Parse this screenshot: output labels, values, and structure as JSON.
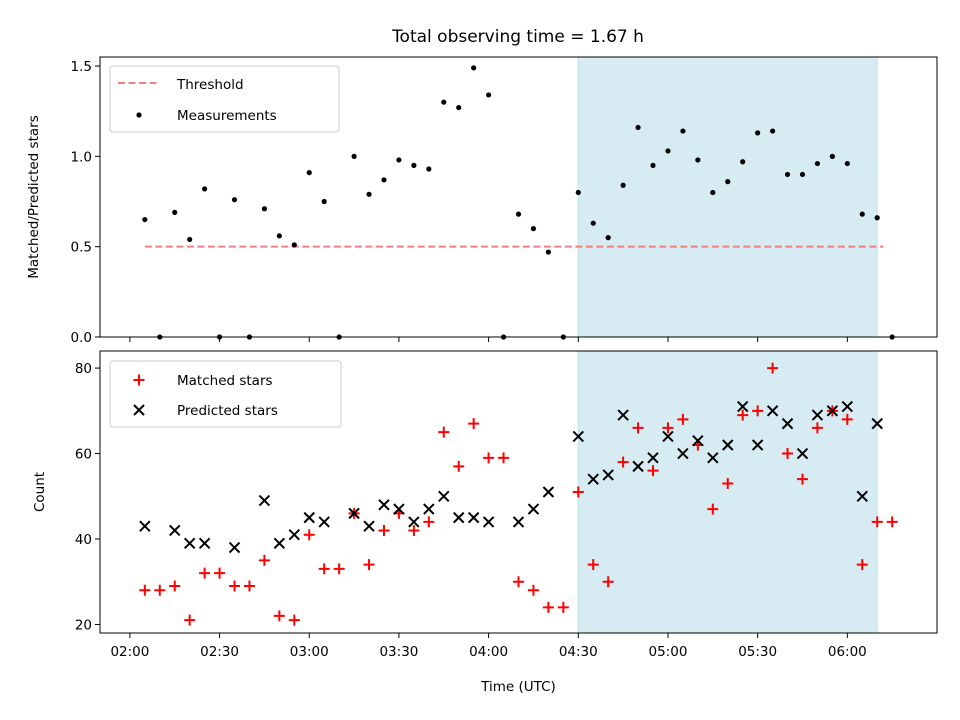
{
  "title": "Total observing time = 1.67 h",
  "colors": {
    "shade": "#add8e6",
    "threshold": "#f08080",
    "matched": "#ff0000",
    "predicted": "#000000",
    "measurement": "#000000"
  },
  "chart_data": [
    {
      "type": "scatter",
      "panel": "top",
      "ylabel": "Matched/Predicted stars",
      "ylim": [
        0,
        1.55
      ],
      "yticks": [
        0.0,
        0.5,
        1.0,
        1.5
      ],
      "ytick_labels": [
        "0.0",
        "0.5",
        "1.0",
        "1.5"
      ],
      "legend_position": "upper-left",
      "legend": [
        {
          "key": "threshold",
          "label": "Threshold"
        },
        {
          "key": "measurements",
          "label": "Measurements"
        }
      ],
      "threshold": {
        "value": 0.5,
        "x_start": "02:05",
        "x_end": "06:12"
      },
      "shaded_span": {
        "x_start": "04:30",
        "x_end": "06:10"
      },
      "series": [
        {
          "name": "Measurements",
          "x": [
            "02:05",
            "02:10",
            "02:15",
            "02:20",
            "02:25",
            "02:30",
            "02:35",
            "02:40",
            "02:45",
            "02:50",
            "02:55",
            "03:00",
            "03:05",
            "03:10",
            "03:15",
            "03:20",
            "03:25",
            "03:30",
            "03:35",
            "03:40",
            "03:45",
            "03:50",
            "03:55",
            "04:00",
            "04:05",
            "04:10",
            "04:15",
            "04:20",
            "04:25",
            "04:30",
            "04:35",
            "04:40",
            "04:45",
            "04:50",
            "04:55",
            "05:00",
            "05:05",
            "05:10",
            "05:15",
            "05:20",
            "05:25",
            "05:30",
            "05:35",
            "05:40",
            "05:45",
            "05:50",
            "05:55",
            "06:00",
            "06:05",
            "06:10",
            "06:15"
          ],
          "y": [
            0.65,
            0.0,
            0.69,
            0.54,
            0.82,
            0.0,
            0.76,
            0.0,
            0.71,
            0.56,
            0.51,
            0.91,
            0.75,
            0.0,
            1.0,
            0.79,
            0.87,
            0.98,
            0.95,
            0.93,
            1.3,
            1.27,
            1.49,
            1.34,
            0.0,
            0.68,
            0.6,
            0.47,
            0.0,
            0.8,
            0.63,
            0.55,
            0.84,
            1.16,
            0.95,
            1.03,
            1.14,
            0.98,
            0.8,
            0.86,
            0.97,
            1.13,
            1.14,
            0.9,
            0.9,
            0.96,
            1.0,
            0.96,
            0.68,
            0.66,
            0.0
          ]
        }
      ]
    },
    {
      "type": "scatter",
      "panel": "bottom",
      "xlabel": "Time (UTC)",
      "ylabel": "Count",
      "ylim": [
        18,
        84
      ],
      "xlim": [
        "01:50",
        "06:30"
      ],
      "xticks": [
        "02:00",
        "02:30",
        "03:00",
        "03:30",
        "04:00",
        "04:30",
        "05:00",
        "05:30",
        "06:00"
      ],
      "yticks": [
        20,
        40,
        60,
        80
      ],
      "ytick_labels": [
        "20",
        "40",
        "60",
        "80"
      ],
      "legend_position": "upper-left",
      "legend": [
        {
          "key": "matched",
          "label": "Matched stars"
        },
        {
          "key": "predicted",
          "label": "Predicted stars"
        }
      ],
      "shaded_span": {
        "x_start": "04:30",
        "x_end": "06:10"
      },
      "series": [
        {
          "name": "Matched stars",
          "x": [
            "02:05",
            "02:10",
            "02:15",
            "02:20",
            "02:25",
            "02:30",
            "02:35",
            "02:40",
            "02:45",
            "02:50",
            "02:55",
            "03:00",
            "03:05",
            "03:10",
            "03:15",
            "03:20",
            "03:25",
            "03:30",
            "03:35",
            "03:40",
            "03:45",
            "03:50",
            "03:55",
            "04:00",
            "04:05",
            "04:10",
            "04:15",
            "04:20",
            "04:25",
            "04:30",
            "04:35",
            "04:40",
            "04:45",
            "04:50",
            "04:55",
            "05:00",
            "05:05",
            "05:10",
            "05:15",
            "05:20",
            "05:25",
            "05:30",
            "05:35",
            "05:40",
            "05:45",
            "05:50",
            "05:55",
            "06:00",
            "06:05",
            "06:10",
            "06:15"
          ],
          "y": [
            28,
            28,
            29,
            21,
            32,
            32,
            29,
            29,
            35,
            22,
            21,
            41,
            33,
            33,
            46,
            34,
            42,
            46,
            42,
            44,
            65,
            57,
            67,
            59,
            59,
            30,
            28,
            24,
            24,
            51,
            34,
            30,
            58,
            66,
            56,
            66,
            68,
            62,
            47,
            53,
            69,
            70,
            80,
            60,
            54,
            66,
            70,
            68,
            34,
            44,
            44
          ]
        },
        {
          "name": "Predicted stars",
          "x": [
            "02:05",
            "02:15",
            "02:20",
            "02:25",
            "02:35",
            "02:45",
            "02:50",
            "02:55",
            "03:00",
            "03:05",
            "03:15",
            "03:20",
            "03:25",
            "03:30",
            "03:35",
            "03:40",
            "03:45",
            "03:50",
            "03:55",
            "04:00",
            "04:10",
            "04:15",
            "04:20",
            "04:30",
            "04:35",
            "04:40",
            "04:45",
            "04:50",
            "04:55",
            "05:00",
            "05:05",
            "05:10",
            "05:15",
            "05:20",
            "05:25",
            "05:30",
            "05:35",
            "05:40",
            "05:45",
            "05:50",
            "05:55",
            "06:00",
            "06:05",
            "06:10"
          ],
          "y": [
            43,
            42,
            39,
            39,
            38,
            49,
            39,
            41,
            45,
            44,
            46,
            43,
            48,
            47,
            44,
            47,
            50,
            45,
            45,
            44,
            44,
            47,
            51,
            64,
            54,
            55,
            69,
            57,
            59,
            64,
            60,
            63,
            59,
            62,
            71,
            62,
            70,
            67,
            60,
            69,
            70,
            71,
            50,
            67
          ]
        }
      ]
    }
  ]
}
